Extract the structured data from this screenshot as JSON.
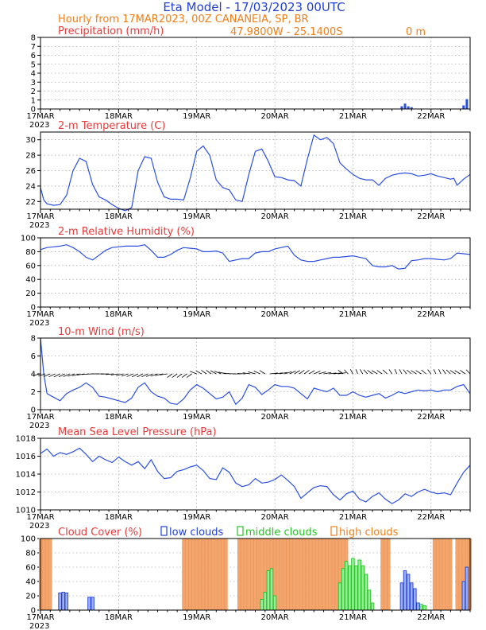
{
  "header": {
    "line1": "Eta Model - 17/03/2023 00UTC",
    "line2": "Hourly from 17MAR2023, 00Z  CANANEIA, SP, BR",
    "line3": "47.9800W - 25.1400S",
    "line3_alt": "0  m"
  },
  "colors": {
    "line": "#2b4fe0",
    "title": "#e83a3a",
    "header": "#1f3fd8",
    "sub": "#f07f1a",
    "low": "#1f3fd8",
    "middle": "#22c422",
    "high": "#f4a56c"
  },
  "x_axis": {
    "hours_total": 132,
    "labels": [
      "17MAR",
      "18MAR",
      "19MAR",
      "20MAR",
      "21MAR",
      "22MAR"
    ],
    "year": "2023"
  },
  "chart_data": [
    {
      "type": "bar",
      "title": "Precipitation (mm/h)",
      "ylim": [
        0,
        8
      ],
      "yticks": [
        "0",
        "1",
        "2",
        "3",
        "4",
        "5",
        "6",
        "7",
        "8"
      ],
      "series": [
        {
          "name": "precipitation",
          "x": [
            111,
            112,
            113,
            114,
            130,
            131
          ],
          "values": [
            0.3,
            0.6,
            0.3,
            0.2,
            0.4,
            1.1
          ]
        }
      ]
    },
    {
      "type": "line",
      "title": "2-m Temperature (C)",
      "ylim": [
        21,
        31
      ],
      "yticks": [
        "22",
        "24",
        "26",
        "28",
        "30"
      ],
      "series": [
        {
          "name": "temperature",
          "x": [
            0,
            1,
            2,
            4,
            6,
            8,
            10,
            12,
            14,
            16,
            18,
            20,
            22,
            24,
            26,
            28,
            30,
            32,
            34,
            36,
            38,
            40,
            42,
            44,
            46,
            48,
            50,
            52,
            54,
            56,
            58,
            60,
            62,
            64,
            66,
            68,
            70,
            72,
            74,
            76,
            78,
            80,
            82,
            84,
            86,
            88,
            90,
            92,
            94,
            96,
            98,
            100,
            102,
            104,
            106,
            108,
            110,
            112,
            114,
            116,
            118,
            120,
            122,
            124,
            126,
            127,
            128,
            130,
            132
          ],
          "values": [
            23.8,
            22.2,
            21.7,
            21.5,
            21.6,
            22.8,
            26.0,
            27.6,
            27.2,
            24.2,
            22.6,
            22.2,
            21.6,
            21.1,
            20.8,
            21.2,
            26.0,
            27.8,
            27.6,
            24.5,
            22.6,
            22.3,
            22.3,
            22.2,
            25.0,
            28.5,
            29.2,
            28.0,
            24.8,
            23.8,
            23.5,
            22.2,
            22.0,
            25.5,
            28.5,
            28.8,
            27.2,
            25.2,
            25.1,
            24.8,
            24.7,
            24.0,
            27.5,
            30.6,
            30.0,
            30.3,
            29.5,
            27.0,
            26.2,
            25.5,
            25.0,
            24.8,
            24.8,
            24.1,
            25.0,
            25.4,
            25.6,
            25.7,
            25.6,
            25.3,
            25.4,
            25.6,
            25.3,
            25.1,
            24.9,
            25.0,
            24.1,
            24.9,
            25.5
          ]
        }
      ]
    },
    {
      "type": "line",
      "title": "2-m Relative Humidity (%)",
      "ylim": [
        0,
        100
      ],
      "yticks": [
        "0",
        "20",
        "40",
        "60",
        "80",
        "100"
      ],
      "series": [
        {
          "name": "humidity",
          "x": [
            0,
            2,
            4,
            6,
            8,
            10,
            12,
            14,
            16,
            18,
            20,
            22,
            24,
            26,
            28,
            30,
            32,
            34,
            36,
            38,
            40,
            42,
            44,
            46,
            48,
            50,
            52,
            54,
            56,
            58,
            60,
            62,
            64,
            66,
            68,
            70,
            72,
            74,
            76,
            78,
            80,
            82,
            84,
            86,
            88,
            90,
            92,
            94,
            96,
            98,
            100,
            102,
            104,
            106,
            108,
            110,
            112,
            114,
            116,
            118,
            120,
            122,
            124,
            126,
            128,
            130,
            132
          ],
          "values": [
            83,
            86,
            87,
            88,
            90,
            86,
            80,
            72,
            68,
            75,
            82,
            86,
            87,
            88,
            88,
            88,
            90,
            82,
            72,
            72,
            76,
            82,
            86,
            85,
            84,
            80,
            80,
            81,
            78,
            66,
            68,
            70,
            70,
            78,
            80,
            80,
            84,
            86,
            88,
            75,
            68,
            66,
            66,
            68,
            70,
            72,
            72,
            73,
            74,
            72,
            70,
            60,
            58,
            58,
            60,
            55,
            56,
            67,
            68,
            70,
            70,
            69,
            68,
            70,
            78,
            77,
            76
          ]
        }
      ]
    },
    {
      "type": "line",
      "title": "10-m Wind (m/s)",
      "ylim": [
        0,
        8
      ],
      "yticks": [
        "0",
        "2",
        "4",
        "6",
        "8"
      ],
      "series": [
        {
          "name": "wind speed",
          "x": [
            0,
            1,
            2,
            4,
            6,
            8,
            10,
            12,
            14,
            16,
            18,
            20,
            22,
            24,
            26,
            28,
            30,
            32,
            34,
            36,
            38,
            40,
            42,
            44,
            46,
            48,
            50,
            52,
            54,
            56,
            58,
            60,
            62,
            64,
            66,
            68,
            70,
            72,
            74,
            76,
            78,
            80,
            82,
            84,
            86,
            88,
            90,
            92,
            94,
            96,
            98,
            100,
            102,
            104,
            106,
            108,
            110,
            112,
            114,
            116,
            118,
            120,
            122,
            124,
            126,
            128,
            130,
            132
          ],
          "values": [
            8.0,
            4.0,
            1.8,
            1.4,
            1.0,
            1.8,
            2.2,
            2.5,
            3.0,
            2.5,
            1.5,
            1.4,
            1.2,
            1.0,
            0.8,
            1.3,
            2.5,
            3.0,
            2.0,
            1.5,
            1.3,
            0.7,
            0.6,
            1.2,
            2.2,
            2.8,
            2.4,
            1.8,
            1.2,
            1.4,
            2.0,
            0.6,
            1.3,
            2.8,
            2.5,
            1.7,
            2.2,
            2.8,
            2.6,
            2.6,
            2.4,
            1.8,
            1.2,
            2.4,
            2.2,
            2.0,
            2.4,
            1.6,
            1.6,
            2.0,
            1.6,
            1.4,
            1.6,
            1.8,
            1.3,
            1.6,
            2.0,
            1.8,
            2.0,
            2.2,
            2.1,
            2.2,
            2.0,
            2.2,
            2.2,
            2.6,
            2.8,
            1.8
          ]
        }
      ]
    },
    {
      "type": "line",
      "title": "Mean Sea Level Pressure (hPa)",
      "ylim": [
        1010,
        1018
      ],
      "yticks": [
        "1010",
        "1012",
        "1014",
        "1016",
        "1018"
      ],
      "series": [
        {
          "name": "pressure",
          "x": [
            0,
            2,
            4,
            6,
            8,
            10,
            12,
            14,
            16,
            18,
            20,
            22,
            24,
            26,
            28,
            30,
            32,
            34,
            36,
            38,
            40,
            42,
            44,
            46,
            48,
            50,
            52,
            54,
            56,
            58,
            60,
            62,
            64,
            66,
            68,
            70,
            72,
            74,
            76,
            78,
            80,
            82,
            84,
            86,
            88,
            90,
            92,
            94,
            96,
            98,
            100,
            102,
            104,
            106,
            108,
            110,
            112,
            114,
            116,
            118,
            120,
            122,
            124,
            126,
            128,
            130,
            132
          ],
          "values": [
            1016.3,
            1016.8,
            1016.0,
            1016.4,
            1016.2,
            1016.5,
            1016.9,
            1016.2,
            1015.4,
            1016.0,
            1015.6,
            1015.3,
            1015.9,
            1015.4,
            1015.0,
            1015.4,
            1014.6,
            1015.6,
            1014.3,
            1013.5,
            1013.6,
            1014.3,
            1014.5,
            1014.8,
            1015.0,
            1014.4,
            1013.5,
            1013.4,
            1014.7,
            1014.2,
            1013.0,
            1012.6,
            1012.8,
            1013.5,
            1013.0,
            1013.1,
            1013.4,
            1013.9,
            1013.3,
            1012.6,
            1011.3,
            1011.9,
            1012.5,
            1012.7,
            1012.6,
            1011.7,
            1011.1,
            1011.8,
            1012.1,
            1011.2,
            1010.9,
            1011.5,
            1011.9,
            1011.2,
            1010.7,
            1011.1,
            1011.8,
            1011.5,
            1012.0,
            1012.3,
            1012.0,
            1011.8,
            1011.9,
            1011.7,
            1013.0,
            1014.2,
            1015.0
          ]
        }
      ]
    },
    {
      "type": "bar",
      "title": "Cloud Cover (%)",
      "ylim": [
        0,
        100
      ],
      "yticks": [
        "0",
        "20",
        "40",
        "60",
        "80",
        "100"
      ],
      "legend": [
        "low clouds",
        "middle clouds",
        "high clouds"
      ],
      "series": [
        {
          "name": "low clouds",
          "x": [
            6,
            7,
            8,
            15,
            16,
            111,
            112,
            113,
            114,
            115,
            116,
            130,
            131
          ],
          "values": [
            24,
            25,
            24,
            18,
            18,
            38,
            55,
            50,
            38,
            30,
            10,
            40,
            60
          ]
        },
        {
          "name": "middle clouds",
          "x": [
            68,
            69,
            70,
            71,
            72,
            92,
            93,
            94,
            95,
            96,
            97,
            98,
            99,
            100,
            101,
            102,
            115,
            116,
            117,
            118
          ],
          "values": [
            15,
            25,
            55,
            58,
            20,
            38,
            58,
            68,
            62,
            72,
            62,
            70,
            62,
            50,
            28,
            10,
            12,
            10,
            8,
            6
          ]
        },
        {
          "name": "high clouds",
          "range_start": [
            0,
            44,
            61,
            80,
            105,
            121,
            124,
            128
          ],
          "range_end": [
            3,
            57,
            79,
            94,
            107,
            123,
            126,
            132
          ],
          "values": [
            100,
            100,
            100,
            100,
            100,
            100,
            100,
            100
          ]
        }
      ]
    }
  ]
}
